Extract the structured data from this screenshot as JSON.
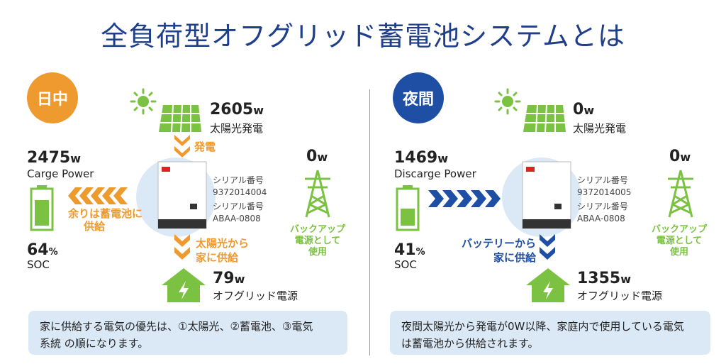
{
  "title": "全負荷型オフグリッド蓄電池システムとは",
  "colors": {
    "orange": "#ee9a2f",
    "green": "#7cc242",
    "blue": "#1f4fa5",
    "note_bg": "#dbe9f7",
    "title": "#1f3f8a"
  },
  "day": {
    "badge": "日中",
    "solar_value": "2605",
    "solar_unit": "w",
    "solar_label": "太陽光発電",
    "flow_down_label": "発電",
    "battery_value": "2475",
    "battery_unit": "w",
    "battery_label": "Carge Power",
    "surplus_label_1": "余りは蓄電池に",
    "surplus_label_2": "供給",
    "serial_label_1": "シリアル番号",
    "serial_value_1": "9372014004",
    "serial_label_2": "シリアル番号",
    "serial_value_2": "ABAA-0808",
    "grid_value": "0",
    "grid_unit": "w",
    "grid_caption_1": "バックアップ",
    "grid_caption_2": "電源として",
    "grid_caption_3": "使用",
    "supply_label_1": "太陽光から",
    "supply_label_2": "家に供給",
    "soc_value": "64",
    "soc_unit": "%",
    "soc_label": "SOC",
    "home_value": "79",
    "home_unit": "w",
    "home_label": "オフグリッド電源",
    "note_line1": "家に供給する電気の優先は、①太陽光、②蓄電池、③電気",
    "note_line2": "系統 の順になります。"
  },
  "night": {
    "badge": "夜間",
    "solar_value": "0",
    "solar_unit": "w",
    "solar_label": "太陽光発電",
    "battery_value": "1469",
    "battery_unit": "w",
    "battery_label": "Discarge Power",
    "serial_label_1": "シリアル番号",
    "serial_value_1": "9372014005",
    "serial_label_2": "シリアル番号",
    "serial_value_2": "ABAA-0808",
    "grid_value": "0",
    "grid_unit": "w",
    "grid_caption_1": "バックアップ",
    "grid_caption_2": "電源として",
    "grid_caption_3": "使用",
    "supply_label_1": "バッテリーから",
    "supply_label_2": "家に供給",
    "soc_value": "41",
    "soc_unit": "%",
    "soc_label": "SOC",
    "home_value": "1355",
    "home_unit": "w",
    "home_label": "オフグリッド電源",
    "note_line1": "夜間太陽光から発電が0W以降、家庭内で使用している電気",
    "note_line2": "は蓄電池から供給されます。"
  }
}
